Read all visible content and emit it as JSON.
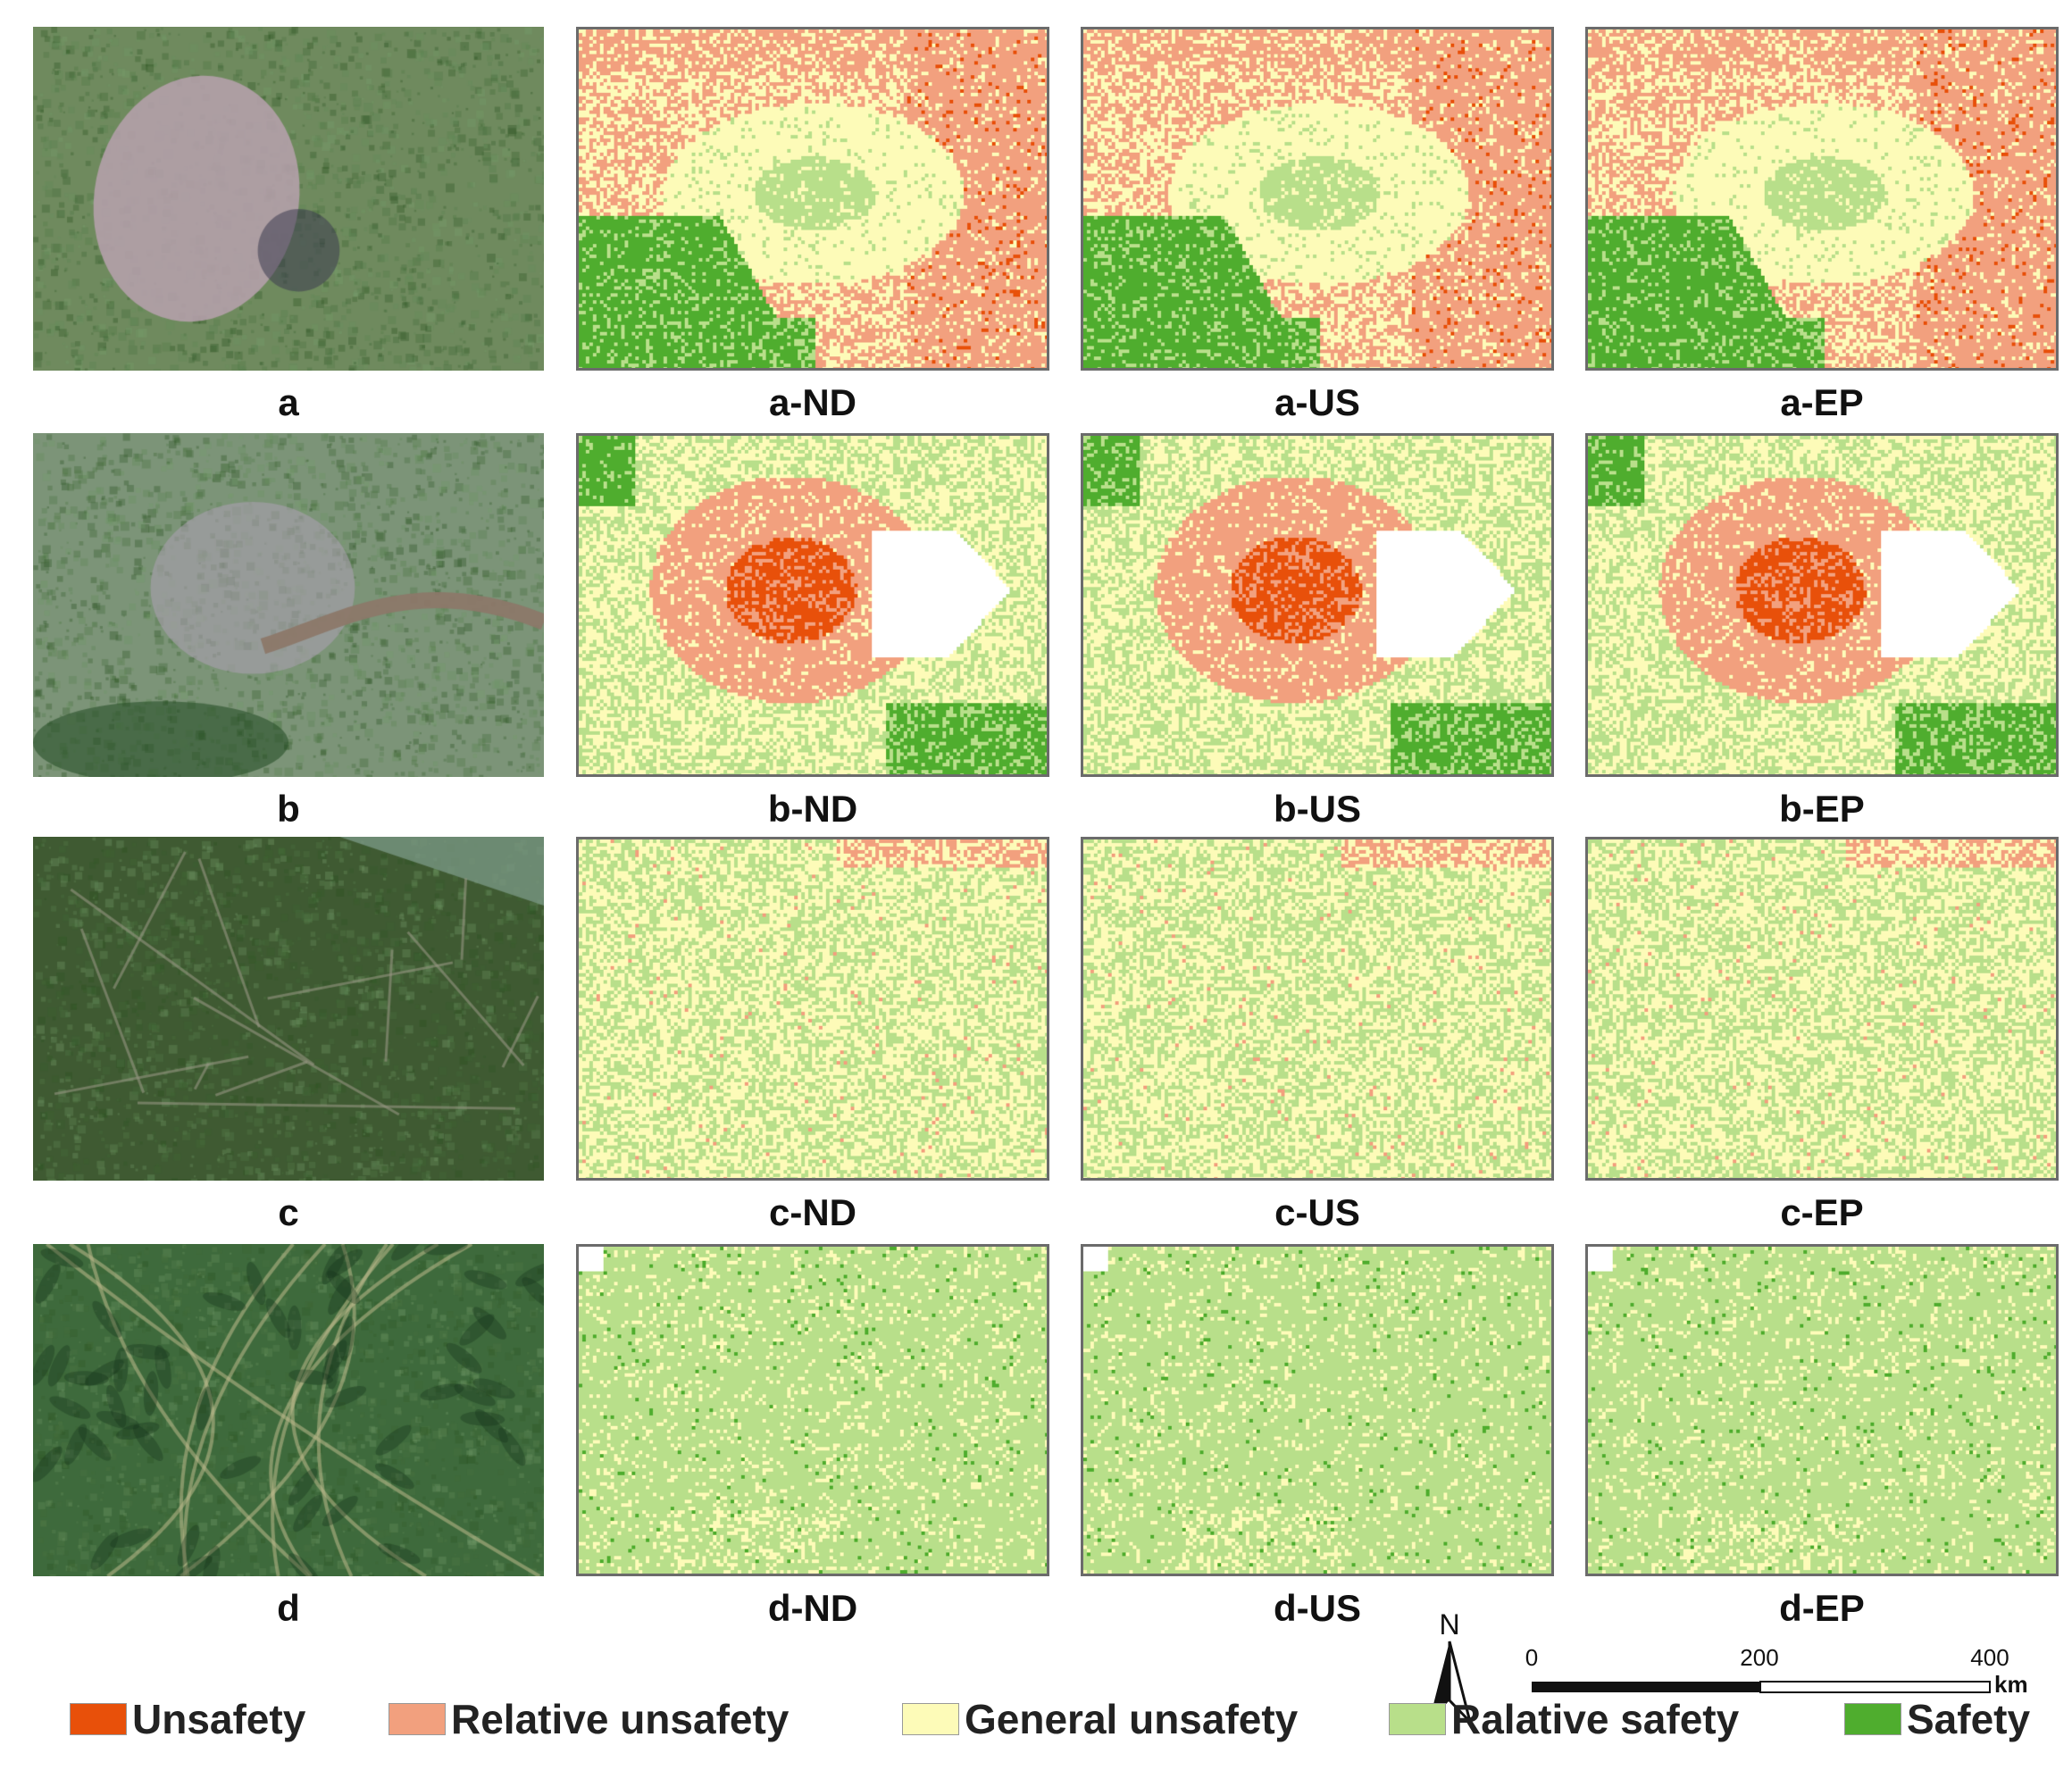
{
  "figure": {
    "rows": [
      {
        "id": "a",
        "panels": [
          {
            "kind": "photo",
            "caption": "a"
          },
          {
            "kind": "map",
            "caption": "a-ND"
          },
          {
            "kind": "map",
            "caption": "a-US"
          },
          {
            "kind": "map",
            "caption": "a-EP"
          }
        ]
      },
      {
        "id": "b",
        "panels": [
          {
            "kind": "photo",
            "caption": "b"
          },
          {
            "kind": "map",
            "caption": "b-ND"
          },
          {
            "kind": "map",
            "caption": "b-US"
          },
          {
            "kind": "map",
            "caption": "b-EP"
          }
        ]
      },
      {
        "id": "c",
        "panels": [
          {
            "kind": "photo",
            "caption": "c"
          },
          {
            "kind": "map",
            "caption": "c-ND"
          },
          {
            "kind": "map",
            "caption": "c-US"
          },
          {
            "kind": "map",
            "caption": "c-EP"
          }
        ]
      },
      {
        "id": "d",
        "panels": [
          {
            "kind": "photo",
            "caption": "d"
          },
          {
            "kind": "map",
            "caption": "d-ND"
          },
          {
            "kind": "map",
            "caption": "d-US"
          },
          {
            "kind": "map",
            "caption": "d-EP"
          }
        ]
      }
    ]
  },
  "legend": {
    "items": [
      {
        "label": "Unsafety",
        "color": "#e8500a"
      },
      {
        "label": "Relative unsafety",
        "color": "#f2a07e"
      },
      {
        "label": "General unsafety",
        "color": "#fdfbb8"
      },
      {
        "label": "Ralative safety",
        "color": "#b8df8a"
      },
      {
        "label": "Safety",
        "color": "#4fad2e"
      }
    ]
  },
  "north_arrow": {
    "label": "N",
    "icon": "north-arrow-icon"
  },
  "scale_bar": {
    "ticks": [
      "0",
      "200",
      "400"
    ],
    "unit": "km"
  }
}
